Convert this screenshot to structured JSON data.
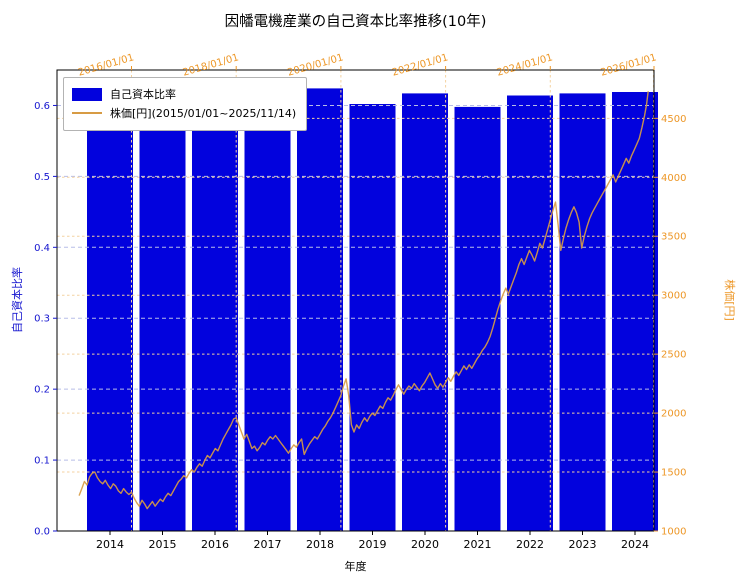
{
  "chart_data": {
    "type": "bar+line",
    "title": "因幡電機産業の自己資本比率推移(10年)",
    "xlabel": "年度",
    "left_axis": {
      "label": "自己資本比率",
      "color": "#1515cf",
      "grid_color": "#b7bde8",
      "min": 0,
      "max": 0.65,
      "ticks": [
        "0.0",
        "0.1",
        "0.2",
        "0.3",
        "0.4",
        "0.5",
        "0.6"
      ],
      "tick_values": [
        0,
        0.1,
        0.2,
        0.3,
        0.4,
        0.5,
        0.6
      ]
    },
    "right_axis": {
      "label": "株価[円]",
      "color": "#ed9727",
      "grid_color": "#f4d2a0",
      "min": 1000,
      "max": 4910,
      "ticks": [
        "1000",
        "1500",
        "2000",
        "2500",
        "3000",
        "3500",
        "4000",
        "4500"
      ],
      "tick_values": [
        1000,
        1500,
        2000,
        2500,
        3000,
        3500,
        4000,
        4500
      ]
    },
    "bottom_axis": {
      "color": "#000000",
      "ticks": [
        "2014",
        "2015",
        "2016",
        "2017",
        "2018",
        "2019",
        "2020",
        "2021",
        "2022",
        "2023",
        "2024"
      ]
    },
    "top_axis": {
      "color": "#ed9727",
      "ticks": [
        "2016/01/01",
        "2018/01/01",
        "2020/01/01",
        "2022/01/01",
        "2024/01/01",
        "2026/01/01"
      ],
      "tick_dates": [
        2016,
        2018,
        2020,
        2022,
        2024,
        2026
      ]
    },
    "date_range": [
      2014.577,
      2025.981
    ],
    "bars": {
      "name": "自己資本比率",
      "color": "#0202dd",
      "categories": [
        "2014",
        "2015",
        "2016",
        "2017",
        "2018",
        "2019",
        "2020",
        "2021",
        "2022",
        "2023",
        "2024"
      ],
      "values": [
        0.624,
        0.624,
        0.622,
        0.626,
        0.624,
        0.602,
        0.617,
        0.598,
        0.614,
        0.617,
        0.619
      ]
    },
    "line": {
      "name": "株価[円](2015/01/01~2025/11/14)",
      "color": "#d79b44",
      "points": [
        [
          2015.0,
          1300
        ],
        [
          2015.05,
          1360
        ],
        [
          2015.1,
          1420
        ],
        [
          2015.15,
          1390
        ],
        [
          2015.2,
          1460
        ],
        [
          2015.25,
          1490
        ],
        [
          2015.3,
          1500
        ],
        [
          2015.35,
          1450
        ],
        [
          2015.4,
          1420
        ],
        [
          2015.45,
          1400
        ],
        [
          2015.5,
          1430
        ],
        [
          2015.55,
          1390
        ],
        [
          2015.6,
          1360
        ],
        [
          2015.65,
          1400
        ],
        [
          2015.7,
          1380
        ],
        [
          2015.75,
          1340
        ],
        [
          2015.8,
          1320
        ],
        [
          2015.85,
          1360
        ],
        [
          2015.9,
          1330
        ],
        [
          2015.95,
          1310
        ],
        [
          2016.0,
          1330
        ],
        [
          2016.05,
          1280
        ],
        [
          2016.1,
          1240
        ],
        [
          2016.15,
          1210
        ],
        [
          2016.2,
          1260
        ],
        [
          2016.25,
          1230
        ],
        [
          2016.3,
          1190
        ],
        [
          2016.35,
          1220
        ],
        [
          2016.4,
          1250
        ],
        [
          2016.45,
          1210
        ],
        [
          2016.5,
          1240
        ],
        [
          2016.55,
          1270
        ],
        [
          2016.6,
          1250
        ],
        [
          2016.65,
          1290
        ],
        [
          2016.7,
          1320
        ],
        [
          2016.75,
          1300
        ],
        [
          2016.8,
          1340
        ],
        [
          2016.85,
          1380
        ],
        [
          2016.9,
          1420
        ],
        [
          2016.95,
          1440
        ],
        [
          2017.0,
          1470
        ],
        [
          2017.05,
          1450
        ],
        [
          2017.1,
          1490
        ],
        [
          2017.15,
          1520
        ],
        [
          2017.2,
          1500
        ],
        [
          2017.25,
          1540
        ],
        [
          2017.3,
          1570
        ],
        [
          2017.35,
          1550
        ],
        [
          2017.4,
          1600
        ],
        [
          2017.45,
          1640
        ],
        [
          2017.5,
          1620
        ],
        [
          2017.55,
          1660
        ],
        [
          2017.6,
          1700
        ],
        [
          2017.65,
          1680
        ],
        [
          2017.7,
          1730
        ],
        [
          2017.75,
          1780
        ],
        [
          2017.8,
          1820
        ],
        [
          2017.85,
          1860
        ],
        [
          2017.9,
          1900
        ],
        [
          2017.95,
          1950
        ],
        [
          2018.0,
          1960
        ],
        [
          2018.05,
          1900
        ],
        [
          2018.1,
          1840
        ],
        [
          2018.15,
          1780
        ],
        [
          2018.2,
          1820
        ],
        [
          2018.25,
          1760
        ],
        [
          2018.3,
          1700
        ],
        [
          2018.35,
          1720
        ],
        [
          2018.4,
          1680
        ],
        [
          2018.45,
          1710
        ],
        [
          2018.5,
          1750
        ],
        [
          2018.55,
          1730
        ],
        [
          2018.6,
          1770
        ],
        [
          2018.65,
          1800
        ],
        [
          2018.7,
          1780
        ],
        [
          2018.75,
          1810
        ],
        [
          2018.8,
          1780
        ],
        [
          2018.85,
          1750
        ],
        [
          2018.9,
          1720
        ],
        [
          2018.95,
          1690
        ],
        [
          2019.0,
          1660
        ],
        [
          2019.05,
          1700
        ],
        [
          2019.1,
          1730
        ],
        [
          2019.15,
          1710
        ],
        [
          2019.2,
          1750
        ],
        [
          2019.25,
          1780
        ],
        [
          2019.3,
          1650
        ],
        [
          2019.35,
          1700
        ],
        [
          2019.4,
          1740
        ],
        [
          2019.45,
          1770
        ],
        [
          2019.5,
          1800
        ],
        [
          2019.55,
          1780
        ],
        [
          2019.6,
          1820
        ],
        [
          2019.65,
          1860
        ],
        [
          2019.7,
          1890
        ],
        [
          2019.75,
          1930
        ],
        [
          2019.8,
          1960
        ],
        [
          2019.85,
          2000
        ],
        [
          2019.9,
          2050
        ],
        [
          2019.95,
          2100
        ],
        [
          2020.0,
          2150
        ],
        [
          2020.05,
          2230
        ],
        [
          2020.1,
          2290
        ],
        [
          2020.15,
          2150
        ],
        [
          2020.2,
          1900
        ],
        [
          2020.25,
          1840
        ],
        [
          2020.3,
          1900
        ],
        [
          2020.35,
          1870
        ],
        [
          2020.4,
          1920
        ],
        [
          2020.45,
          1960
        ],
        [
          2020.5,
          1930
        ],
        [
          2020.55,
          1970
        ],
        [
          2020.6,
          2000
        ],
        [
          2020.65,
          1980
        ],
        [
          2020.7,
          2020
        ],
        [
          2020.75,
          2060
        ],
        [
          2020.8,
          2040
        ],
        [
          2020.85,
          2090
        ],
        [
          2020.9,
          2130
        ],
        [
          2020.95,
          2110
        ],
        [
          2021.0,
          2150
        ],
        [
          2021.05,
          2200
        ],
        [
          2021.1,
          2240
        ],
        [
          2021.15,
          2200
        ],
        [
          2021.2,
          2160
        ],
        [
          2021.25,
          2200
        ],
        [
          2021.3,
          2230
        ],
        [
          2021.35,
          2210
        ],
        [
          2021.4,
          2250
        ],
        [
          2021.45,
          2220
        ],
        [
          2021.5,
          2190
        ],
        [
          2021.55,
          2230
        ],
        [
          2021.6,
          2260
        ],
        [
          2021.65,
          2300
        ],
        [
          2021.7,
          2340
        ],
        [
          2021.75,
          2290
        ],
        [
          2021.8,
          2240
        ],
        [
          2021.85,
          2210
        ],
        [
          2021.9,
          2250
        ],
        [
          2021.95,
          2220
        ],
        [
          2022.0,
          2260
        ],
        [
          2022.05,
          2300
        ],
        [
          2022.1,
          2270
        ],
        [
          2022.15,
          2310
        ],
        [
          2022.2,
          2350
        ],
        [
          2022.25,
          2320
        ],
        [
          2022.3,
          2360
        ],
        [
          2022.35,
          2400
        ],
        [
          2022.4,
          2370
        ],
        [
          2022.45,
          2410
        ],
        [
          2022.5,
          2380
        ],
        [
          2022.55,
          2420
        ],
        [
          2022.6,
          2460
        ],
        [
          2022.65,
          2490
        ],
        [
          2022.7,
          2530
        ],
        [
          2022.75,
          2560
        ],
        [
          2022.8,
          2600
        ],
        [
          2022.85,
          2650
        ],
        [
          2022.9,
          2720
        ],
        [
          2022.95,
          2800
        ],
        [
          2023.0,
          2880
        ],
        [
          2023.05,
          2950
        ],
        [
          2023.1,
          3010
        ],
        [
          2023.15,
          3060
        ],
        [
          2023.2,
          3010
        ],
        [
          2023.25,
          3070
        ],
        [
          2023.3,
          3130
        ],
        [
          2023.35,
          3190
        ],
        [
          2023.4,
          3260
        ],
        [
          2023.45,
          3310
        ],
        [
          2023.5,
          3260
        ],
        [
          2023.55,
          3320
        ],
        [
          2023.6,
          3380
        ],
        [
          2023.65,
          3340
        ],
        [
          2023.7,
          3290
        ],
        [
          2023.75,
          3360
        ],
        [
          2023.8,
          3440
        ],
        [
          2023.85,
          3400
        ],
        [
          2023.9,
          3480
        ],
        [
          2023.95,
          3560
        ],
        [
          2024.0,
          3640
        ],
        [
          2024.05,
          3720
        ],
        [
          2024.1,
          3790
        ],
        [
          2024.15,
          3600
        ],
        [
          2024.2,
          3380
        ],
        [
          2024.25,
          3480
        ],
        [
          2024.3,
          3570
        ],
        [
          2024.35,
          3640
        ],
        [
          2024.4,
          3700
        ],
        [
          2024.45,
          3750
        ],
        [
          2024.5,
          3700
        ],
        [
          2024.55,
          3620
        ],
        [
          2024.6,
          3400
        ],
        [
          2024.65,
          3500
        ],
        [
          2024.7,
          3580
        ],
        [
          2024.75,
          3650
        ],
        [
          2024.8,
          3700
        ],
        [
          2024.85,
          3740
        ],
        [
          2024.9,
          3780
        ],
        [
          2024.95,
          3820
        ],
        [
          2025.0,
          3860
        ],
        [
          2025.05,
          3900
        ],
        [
          2025.1,
          3940
        ],
        [
          2025.15,
          3980
        ],
        [
          2025.2,
          4020
        ],
        [
          2025.25,
          3960
        ],
        [
          2025.3,
          4010
        ],
        [
          2025.35,
          4060
        ],
        [
          2025.4,
          4110
        ],
        [
          2025.45,
          4160
        ],
        [
          2025.5,
          4120
        ],
        [
          2025.55,
          4180
        ],
        [
          2025.6,
          4230
        ],
        [
          2025.65,
          4280
        ],
        [
          2025.7,
          4330
        ],
        [
          2025.75,
          4420
        ],
        [
          2025.8,
          4520
        ],
        [
          2025.84,
          4620
        ],
        [
          2025.87,
          4730
        ]
      ]
    },
    "legend": {
      "position": "upper-left",
      "entries": [
        {
          "label": "自己資本比率",
          "swatch": "bar",
          "color": "#0202dd"
        },
        {
          "label": "株価[円](2015/01/01~2025/11/14)",
          "swatch": "line",
          "color": "#d79b44"
        }
      ]
    }
  }
}
